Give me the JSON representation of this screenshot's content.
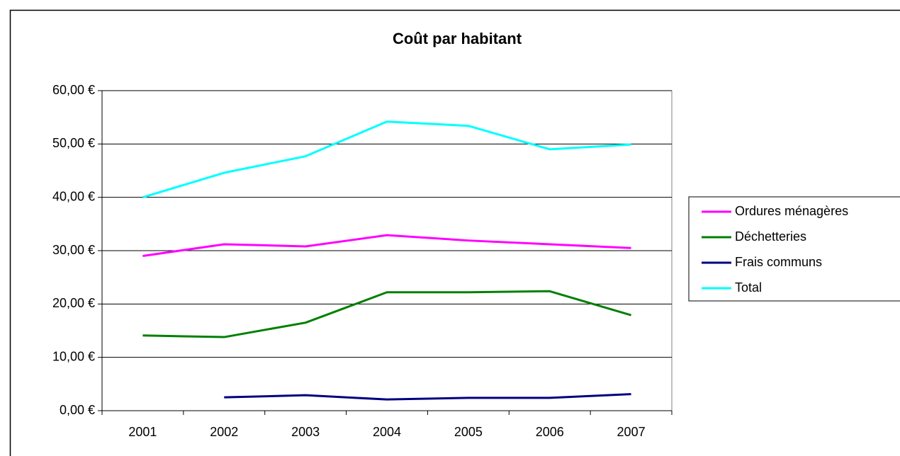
{
  "chart_data": {
    "type": "line",
    "title": "Coût par habitant",
    "categories": [
      "2001",
      "2002",
      "2003",
      "2004",
      "2005",
      "2006",
      "2007"
    ],
    "series": [
      {
        "name": "Ordures ménagères",
        "color": "#ff00ff",
        "values": [
          29.0,
          31.2,
          30.8,
          32.9,
          31.9,
          31.2,
          30.5
        ]
      },
      {
        "name": "Déchetteries",
        "color": "#008000",
        "values": [
          14.1,
          13.8,
          16.5,
          22.2,
          22.2,
          22.4,
          17.9
        ]
      },
      {
        "name": "Frais communs",
        "color": "#000080",
        "values": [
          null,
          2.5,
          2.9,
          2.1,
          2.4,
          2.4,
          3.1
        ]
      },
      {
        "name": "Total",
        "color": "#00ffff",
        "values": [
          40.0,
          44.6,
          47.7,
          54.2,
          53.4,
          49.0,
          49.9
        ]
      }
    ],
    "ylim": [
      0,
      60
    ],
    "yticks": [
      {
        "value": 0,
        "label": "0,00 €"
      },
      {
        "value": 10,
        "label": "10,00 €"
      },
      {
        "value": 20,
        "label": "20,00 €"
      },
      {
        "value": 30,
        "label": "30,00 €"
      },
      {
        "value": 40,
        "label": "40,00 €"
      },
      {
        "value": 50,
        "label": "50,00 €"
      },
      {
        "value": 60,
        "label": "60,00 €"
      }
    ],
    "grid": true,
    "legend": "right"
  }
}
